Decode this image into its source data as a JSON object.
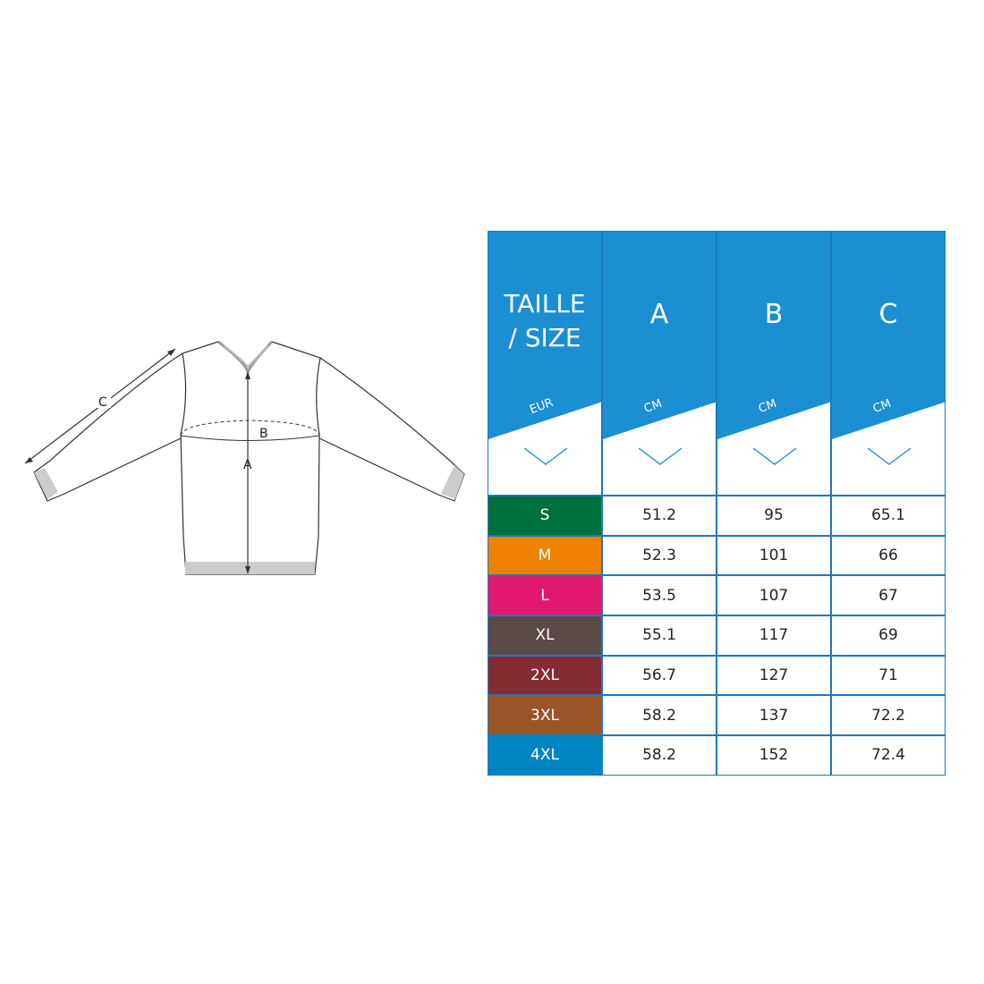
{
  "diagram": {
    "labels": {
      "a": "A",
      "b": "B",
      "c": "C"
    }
  },
  "table": {
    "header_color": "#1b8fd2",
    "headers": [
      {
        "title": "TAILLE / SIZE",
        "unit": "EUR"
      },
      {
        "title": "A",
        "unit": "CM"
      },
      {
        "title": "B",
        "unit": "CM"
      },
      {
        "title": "C",
        "unit": "CM"
      }
    ],
    "rows": [
      {
        "size": "S",
        "color": "#00703c",
        "a": "51.2",
        "b": "95",
        "c": "65.1"
      },
      {
        "size": "M",
        "color": "#ef8200",
        "a": "52.3",
        "b": "101",
        "c": "66"
      },
      {
        "size": "L",
        "color": "#e0196e",
        "a": "53.5",
        "b": "107",
        "c": "67"
      },
      {
        "size": "XL",
        "color": "#5a4a47",
        "a": "55.1",
        "b": "117",
        "c": "69"
      },
      {
        "size": "2XL",
        "color": "#832d33",
        "a": "56.7",
        "b": "127",
        "c": "71"
      },
      {
        "size": "3XL",
        "color": "#9a5527",
        "a": "58.2",
        "b": "137",
        "c": "72.2"
      },
      {
        "size": "4XL",
        "color": "#0085c4",
        "a": "58.2",
        "b": "152",
        "c": "72.4"
      }
    ]
  }
}
